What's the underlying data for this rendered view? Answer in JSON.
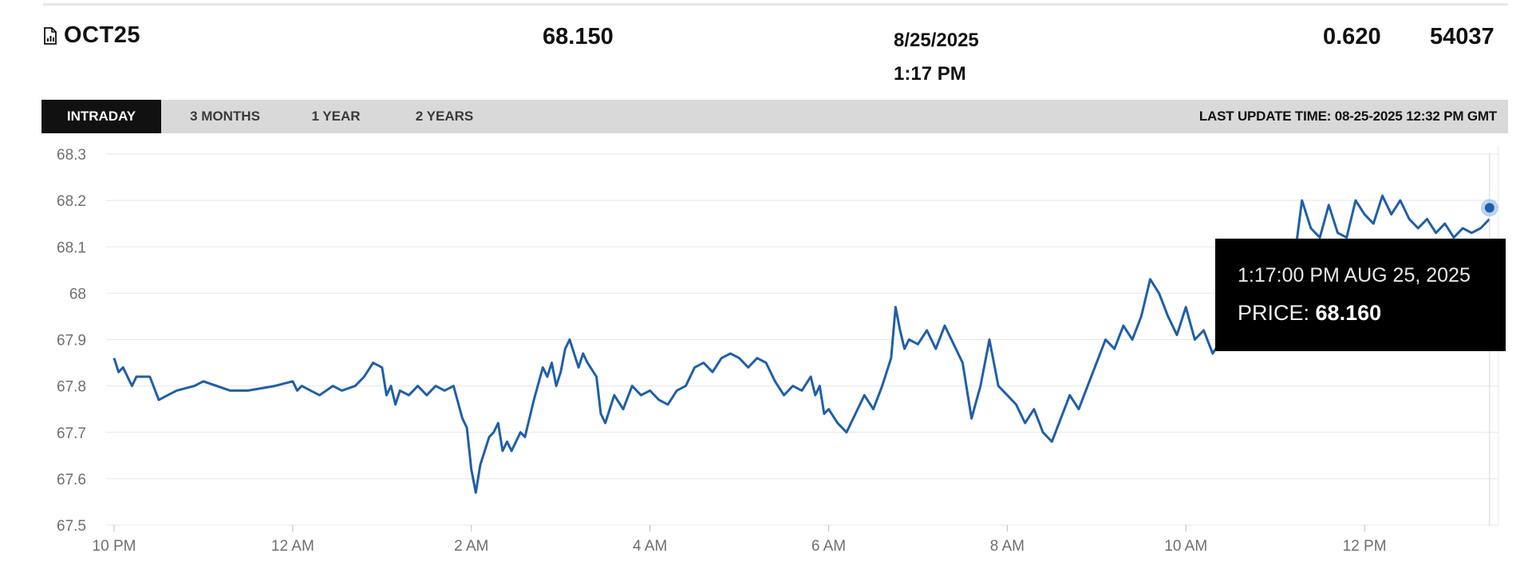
{
  "summary": {
    "symbol": "OCT25",
    "icon": "document-chart-icon",
    "price": "68.150",
    "date": "8/25/2025",
    "time": "1:17 PM",
    "change": "0.620",
    "volume": "54037"
  },
  "tabs": [
    {
      "label": "INTRADAY",
      "active": true
    },
    {
      "label": "3 MONTHS",
      "active": false
    },
    {
      "label": "1 YEAR",
      "active": false
    },
    {
      "label": "2 YEARS",
      "active": false
    }
  ],
  "last_update": "LAST UPDATE TIME: 08-25-2025 12:32 PM GMT",
  "tooltip": {
    "time": "1:17:00 PM AUG 25, 2025",
    "price_label": "PRICE: ",
    "price_value": "68.160"
  },
  "colors": {
    "line": "#1f5fa8",
    "grid": "#e7e7e7",
    "tab_active_bg": "#111111",
    "tabbar_bg": "#d9d9d9"
  },
  "chart_data": {
    "type": "line",
    "x_unit": "hours from 10 PM",
    "xlim": [
      0,
      15.5
    ],
    "ylim": [
      67.5,
      68.3
    ],
    "yticks": [
      "68.3",
      "68.2",
      "68.1",
      "68",
      "67.9",
      "67.8",
      "67.7",
      "67.6",
      "67.5"
    ],
    "ytick_values": [
      68.3,
      68.2,
      68.1,
      68.0,
      67.9,
      67.8,
      67.7,
      67.6,
      67.5
    ],
    "xticks": [
      "10 PM",
      "12 AM",
      "2 AM",
      "4 AM",
      "6 AM",
      "8 AM",
      "10 AM",
      "12 PM"
    ],
    "xtick_values": [
      0,
      2,
      4,
      6,
      8,
      10,
      12,
      14
    ],
    "grid": true,
    "series": [
      {
        "x": [
          0.0,
          0.05,
          0.1,
          0.2,
          0.25,
          0.3,
          0.4,
          0.5,
          0.6,
          0.7,
          0.9,
          1.0,
          1.3,
          1.5,
          1.8,
          2.0,
          2.05,
          2.1,
          2.2,
          2.3,
          2.45,
          2.55,
          2.7,
          2.8,
          2.9,
          3.0,
          3.05,
          3.1,
          3.15,
          3.2,
          3.3,
          3.35,
          3.4,
          3.5,
          3.6,
          3.7,
          3.8,
          3.9,
          3.95,
          4.0,
          4.05,
          4.1,
          4.15,
          4.2,
          4.25,
          4.3,
          4.35,
          4.4,
          4.45,
          4.5,
          4.55,
          4.6,
          4.65,
          4.7,
          4.8,
          4.85,
          4.9,
          4.95,
          5.0,
          5.05,
          5.1,
          5.2,
          5.25,
          5.3,
          5.4,
          5.45,
          5.5,
          5.6,
          5.7,
          5.8,
          5.9,
          6.0,
          6.1,
          6.2,
          6.3,
          6.4,
          6.5,
          6.6,
          6.7,
          6.8,
          6.9,
          7.0,
          7.1,
          7.2,
          7.3,
          7.4,
          7.5,
          7.6,
          7.7,
          7.8,
          7.85,
          7.9,
          7.95,
          8.0,
          8.1,
          8.2,
          8.3,
          8.4,
          8.5,
          8.6,
          8.7,
          8.75,
          8.8,
          8.85,
          8.9,
          9.0,
          9.1,
          9.2,
          9.3,
          9.4,
          9.5,
          9.6,
          9.7,
          9.8,
          9.9,
          10.0,
          10.1,
          10.2,
          10.3,
          10.4,
          10.5,
          10.6,
          10.7,
          10.8,
          10.9,
          11.0,
          11.1,
          11.2,
          11.3,
          11.4,
          11.5,
          11.6,
          11.7,
          11.8,
          11.9,
          12.0,
          12.1,
          12.2,
          12.3,
          12.4,
          12.5,
          12.6,
          12.7,
          12.8,
          12.9,
          13.0,
          13.1,
          13.2,
          13.3,
          13.4,
          13.5,
          13.6,
          13.7,
          13.8,
          13.9,
          14.0,
          14.1,
          14.2,
          14.3,
          14.4,
          14.5,
          14.6,
          14.7,
          14.8,
          14.9,
          15.0,
          15.1,
          15.2,
          15.3,
          15.4
        ],
        "y": [
          67.86,
          67.83,
          67.84,
          67.8,
          67.82,
          67.82,
          67.82,
          67.77,
          67.78,
          67.79,
          67.8,
          67.81,
          67.79,
          67.79,
          67.8,
          67.81,
          67.79,
          67.8,
          67.79,
          67.78,
          67.8,
          67.79,
          67.8,
          67.82,
          67.85,
          67.84,
          67.78,
          67.8,
          67.76,
          67.79,
          67.78,
          67.79,
          67.8,
          67.78,
          67.8,
          67.79,
          67.8,
          67.73,
          67.71,
          67.62,
          67.57,
          67.63,
          67.66,
          67.69,
          67.7,
          67.72,
          67.66,
          67.68,
          67.66,
          67.68,
          67.7,
          67.69,
          67.73,
          67.77,
          67.84,
          67.82,
          67.85,
          67.8,
          67.83,
          67.88,
          67.9,
          67.84,
          67.87,
          67.85,
          67.82,
          67.74,
          67.72,
          67.78,
          67.75,
          67.8,
          67.78,
          67.79,
          67.77,
          67.76,
          67.79,
          67.8,
          67.84,
          67.85,
          67.83,
          67.86,
          67.87,
          67.86,
          67.84,
          67.86,
          67.85,
          67.81,
          67.78,
          67.8,
          67.79,
          67.82,
          67.78,
          67.8,
          67.74,
          67.75,
          67.72,
          67.7,
          67.74,
          67.78,
          67.75,
          67.8,
          67.86,
          67.97,
          67.92,
          67.88,
          67.9,
          67.89,
          67.92,
          67.88,
          67.93,
          67.89,
          67.85,
          67.73,
          67.8,
          67.9,
          67.8,
          67.78,
          67.76,
          67.72,
          67.75,
          67.7,
          67.68,
          67.73,
          67.78,
          67.75,
          67.8,
          67.85,
          67.9,
          67.88,
          67.93,
          67.9,
          67.95,
          68.03,
          68.0,
          67.95,
          67.91,
          67.97,
          67.9,
          67.92,
          67.87,
          67.9,
          67.93,
          67.97,
          67.99,
          68.0,
          67.93,
          67.95,
          68.0,
          68.05,
          68.2,
          68.14,
          68.12,
          68.19,
          68.13,
          68.12,
          68.2,
          68.17,
          68.15,
          68.21,
          68.17,
          68.2,
          68.16,
          68.14,
          68.16,
          68.13,
          68.15,
          68.12,
          68.14,
          68.13,
          68.14,
          68.16
        ]
      }
    ]
  }
}
